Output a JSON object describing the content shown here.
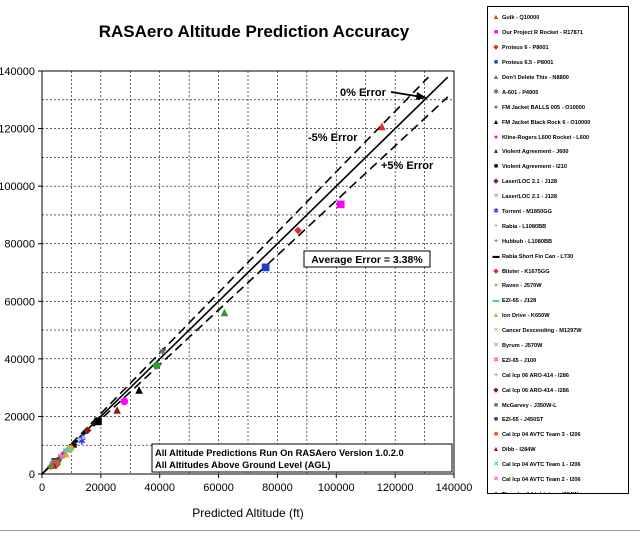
{
  "chart_data": {
    "type": "scatter",
    "title": "RASAero Altitude Prediction Accuracy",
    "xlabel": "Predicted Altitude  (ft)",
    "ylabel": "",
    "xlim": [
      0,
      140000
    ],
    "ylim": [
      0,
      140000
    ],
    "x_ticks": [
      "0",
      "20000",
      "40000",
      "60000",
      "80000",
      "100000",
      "120000",
      "140000"
    ],
    "y_ticks": [
      "0",
      "20000",
      "40000",
      "60000",
      "80000",
      "100000",
      "120000",
      "140000"
    ],
    "grid": true,
    "legend_position": "right",
    "reference_lines": [
      {
        "name": "0% Error",
        "slope": 1.0,
        "style": "solid"
      },
      {
        "name": "-5% Error",
        "slope": 1.05,
        "style": "dashed"
      },
      {
        "name": "+5% Error",
        "slope": 0.95,
        "style": "dashed"
      }
    ],
    "annotations": {
      "zero_error": "0% Error",
      "minus_five": "-5% Error",
      "plus_five": "+5% Error",
      "average_error": "Average Error = 3.38%",
      "note_line1": "All Altitude Predictions Run On RASAero Version 1.0.2.0",
      "note_line2": "All Altitudes Above Ground Level (AGL)"
    },
    "series": [
      {
        "name": "Gulk - Q10000",
        "marker": "▲",
        "color": "#e8262b",
        "x": [
          115500
        ],
        "y": [
          121000
        ]
      },
      {
        "name": "Our Project R Rocket - R17871",
        "marker": "■",
        "color": "#ff00ff",
        "x": [
          101500
        ],
        "y": [
          94000
        ]
      },
      {
        "name": "Proteus 6 - P8001",
        "marker": "◆",
        "color": "#e8262b",
        "x": [
          87000
        ],
        "y": [
          85000
        ]
      },
      {
        "name": "Proteus 6.5 - P8001",
        "marker": "■",
        "color": "#1f3ccf",
        "x": [
          76000
        ],
        "y": [
          72000
        ]
      },
      {
        "name": "Don't Delete This - N8800",
        "marker": "▲",
        "color": "#2e9b2e",
        "x": [
          62000
        ],
        "y": [
          56500
        ]
      },
      {
        "name": "A-601 - P4905",
        "marker": "✱",
        "color": "#6a6a6a",
        "x": [
          41000
        ],
        "y": [
          42500
        ]
      },
      {
        "name": "FM Jacket BALLS 005 - O10000",
        "marker": "●",
        "color": "#2e9b2e",
        "x": [
          39000
        ],
        "y": [
          38000
        ]
      },
      {
        "name": "FM Jacket Black Rock 6 - O10000",
        "marker": "▲",
        "color": "#000000",
        "x": [
          33000
        ],
        "y": [
          29500
        ]
      },
      {
        "name": "Kline-Rogers L600 Rocket - L600",
        "marker": "●",
        "color": "#ff00ff",
        "x": [
          28000
        ],
        "y": [
          25500
        ]
      },
      {
        "name": "Violent Agreement - J600",
        "marker": "▲",
        "color": "#8b1a1a",
        "x": [
          25500
        ],
        "y": [
          22500
        ]
      },
      {
        "name": "Violent Agreement - I210",
        "marker": "■",
        "color": "#000000",
        "x": [
          19000
        ],
        "y": [
          18500
        ]
      },
      {
        "name": "Laser/LOC 2.1 - J128",
        "marker": "◆",
        "color": "#8b1a1a",
        "x": [
          15500
        ],
        "y": [
          15500
        ]
      },
      {
        "name": "Laser/LOC 2.1 - J128",
        "marker": "✕",
        "color": "#7a7aff",
        "x": [
          14000
        ],
        "y": [
          13000
        ]
      },
      {
        "name": "Torrent - M1850GG",
        "marker": "✱",
        "color": "#3a3adf",
        "x": [
          13500
        ],
        "y": [
          11500
        ]
      },
      {
        "name": "Rabia - L1080BB",
        "marker": "✦",
        "color": "#9ec4ff",
        "x": [
          12500
        ],
        "y": [
          12000
        ]
      },
      {
        "name": "Hubbub - L1080BB",
        "marker": "+",
        "color": "#1f3c8f",
        "x": [
          11000
        ],
        "y": [
          10500
        ]
      },
      {
        "name": "Rabia Short Fin Can - L730",
        "marker": "▬",
        "color": "#000000",
        "x": [
          10500
        ],
        "y": [
          10000
        ]
      },
      {
        "name": "Blister - K1675GG",
        "marker": "◆",
        "color": "#e8262b",
        "x": [
          10000
        ],
        "y": [
          9500
        ]
      },
      {
        "name": "Raven - J570W",
        "marker": "●",
        "color": "#9acd32",
        "x": [
          9500
        ],
        "y": [
          9000
        ]
      },
      {
        "name": "EZI-65 - J128",
        "marker": "▬",
        "color": "#5bc0de",
        "x": [
          8500
        ],
        "y": [
          8500
        ]
      },
      {
        "name": "Ion Drive - K650W",
        "marker": "▲",
        "color": "#f0a020",
        "x": [
          8000
        ],
        "y": [
          7500
        ]
      },
      {
        "name": "Cancer Descending - M1297W",
        "marker": "✕",
        "color": "#f0a020",
        "x": [
          7500
        ],
        "y": [
          7000
        ]
      },
      {
        "name": "Byrum - J570W",
        "marker": "✕",
        "color": "#8a8a8a",
        "x": [
          7000
        ],
        "y": [
          6500
        ]
      },
      {
        "name": "EZI-65 - J100",
        "marker": "✱",
        "color": "#ff66cc",
        "x": [
          6500
        ],
        "y": [
          6000
        ]
      },
      {
        "name": "Cal Icp 06 ARO-414 - I286",
        "marker": "+",
        "color": "#2e9b2e",
        "x": [
          6000
        ],
        "y": [
          5500
        ]
      },
      {
        "name": "Cal Icp 06 ARO-414 - I286",
        "marker": "◆",
        "color": "#8b1a1a",
        "x": [
          5500
        ],
        "y": [
          5000
        ]
      },
      {
        "name": "McGarvey - J350W-L",
        "marker": "■",
        "color": "#2e9b2e",
        "x": [
          5000
        ],
        "y": [
          4500
        ]
      },
      {
        "name": "EZI-65 - J450ST",
        "marker": "■",
        "color": "#1f3c8f",
        "x": [
          4500
        ],
        "y": [
          4500
        ]
      },
      {
        "name": "Cal Icp 04 AVTC Team 3 - I206",
        "marker": "■",
        "color": "#e05a1a",
        "x": [
          4500
        ],
        "y": [
          4000
        ]
      },
      {
        "name": "Dibb - I284W",
        "marker": "▲",
        "color": "#8b1a1a",
        "x": [
          4000
        ],
        "y": [
          3500
        ]
      },
      {
        "name": "Cal Icp 04 AVTC Team 1 - I206",
        "marker": "✕",
        "color": "#2ea0a0",
        "x": [
          3500
        ],
        "y": [
          3500
        ]
      },
      {
        "name": "Cal Icp 04 AVTC Team 2 - I206",
        "marker": "✕",
        "color": "#ff00ff",
        "x": [
          3500
        ],
        "y": [
          3000
        ]
      },
      {
        "name": "Thunder & Lightning - I284W",
        "marker": "◆",
        "color": "#6b8e23",
        "x": [
          3000
        ],
        "y": [
          3000
        ]
      }
    ]
  }
}
